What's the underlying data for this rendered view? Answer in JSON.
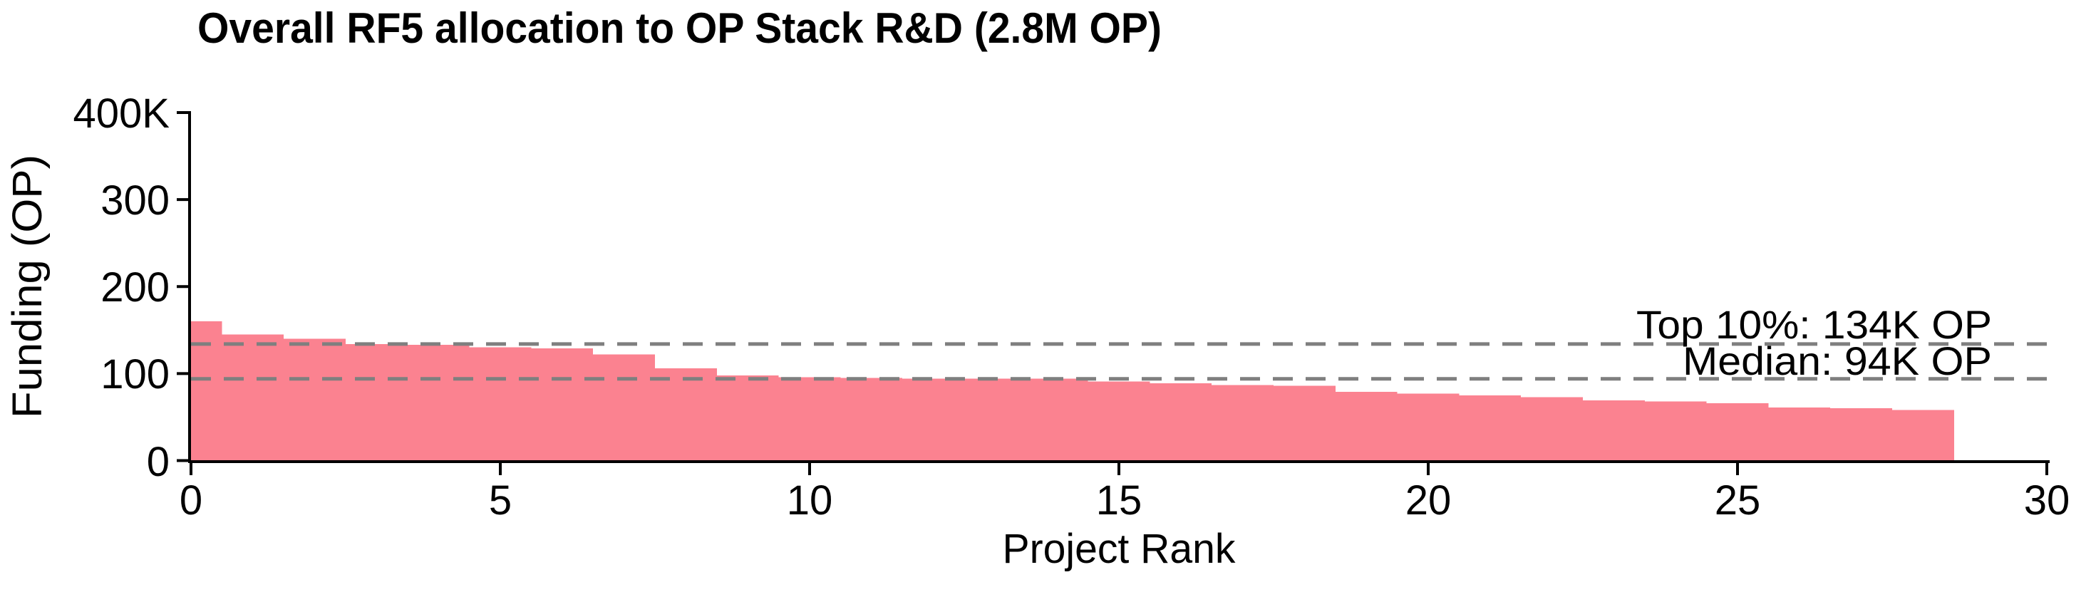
{
  "chart_data": {
    "type": "bar",
    "title": "Overall RF5 allocation to OP Stack R&D (2.8M OP)",
    "xlabel": "Project Rank",
    "ylabel": "Funding (OP)",
    "unit": "K OP",
    "x_start_rank": 0,
    "values_k_op": [
      160,
      145,
      140,
      134,
      133,
      130,
      129,
      122,
      106,
      98,
      96,
      95,
      94,
      94,
      94,
      91,
      89,
      87,
      86,
      79,
      77,
      75,
      73,
      69,
      68,
      66,
      61,
      60,
      58
    ],
    "bar_width_rank_units": 1,
    "bar_color": "#FB8290",
    "xlim": [
      0,
      30
    ],
    "ylim": [
      0,
      400
    ],
    "x_ticks": [
      0,
      5,
      10,
      15,
      20,
      25,
      30
    ],
    "y_ticks": [
      {
        "value": 0,
        "label": "0"
      },
      {
        "value": 100,
        "label": "100"
      },
      {
        "value": 200,
        "label": "200"
      },
      {
        "value": 300,
        "label": "300"
      },
      {
        "value": 400,
        "label": "400K"
      }
    ],
    "reference_lines": [
      {
        "label": "Top 10%: 134K OP",
        "value_k_op": 134,
        "style": "dashed",
        "color": "#7F7F7F"
      },
      {
        "label": "Median: 94K OP",
        "value_k_op": 94,
        "style": "dashed",
        "color": "#7F7F7F"
      }
    ],
    "grid": false,
    "legend": null,
    "axis_color": "#000000"
  }
}
